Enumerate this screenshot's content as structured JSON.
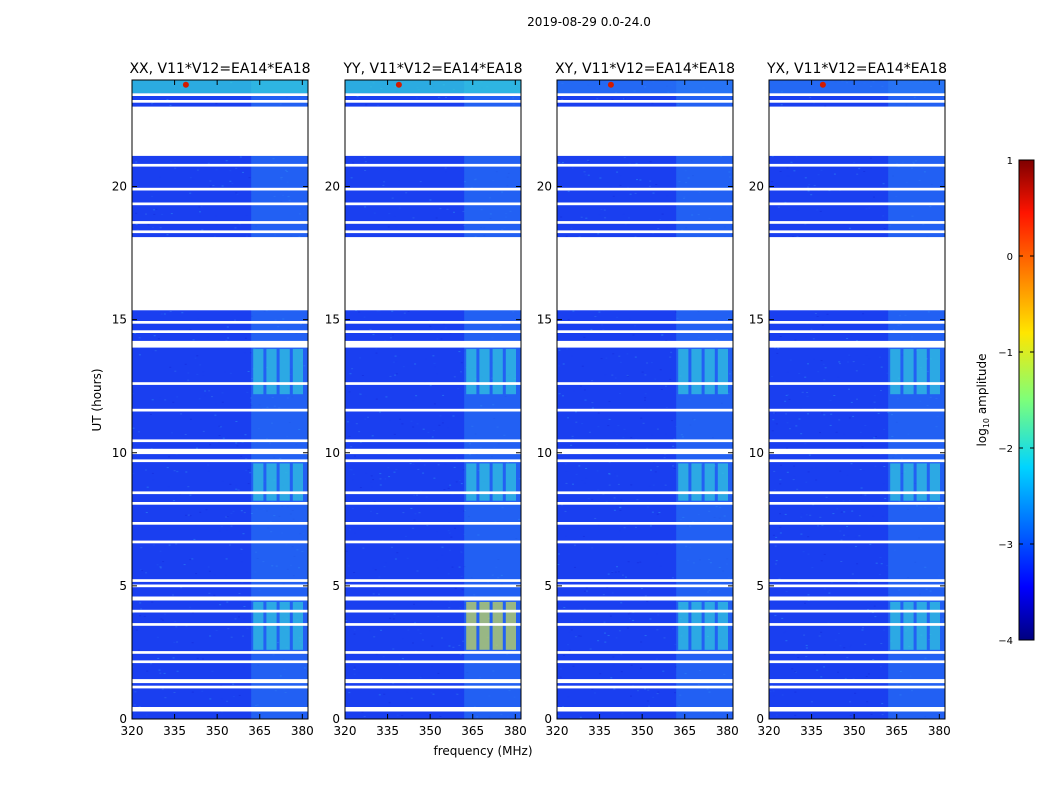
{
  "suptitle": "2019-08-29 0.0-24.0",
  "colors": {
    "bg_low": "#1a3ff0",
    "bg_mid": "#2a7cf5",
    "hot": "#33dada",
    "peak": "#e8f23a",
    "gap": "#ffffff"
  },
  "chart_data": {
    "type": "heatmap",
    "xlabel": "frequency (MHz)",
    "ylabel": "UT (hours)",
    "xlim": [
      320,
      382
    ],
    "ylim": [
      0,
      24
    ],
    "xticks": [
      320,
      335,
      350,
      365,
      380
    ],
    "yticks": [
      0,
      5,
      10,
      15,
      20
    ],
    "panels": [
      {
        "title": "XX, V11*V12=EA14*EA18"
      },
      {
        "title": "YY, V11*V12=EA14*EA18"
      },
      {
        "title": "XY, V11*V12=EA14*EA18"
      },
      {
        "title": "YX, V11*V12=EA14*EA18"
      }
    ],
    "colorbar": {
      "label_main": "log",
      "label_sub": "10",
      "label_rest": " amplitude",
      "vmin": -4,
      "vmax": 1,
      "ticks": [
        -4,
        -3,
        -2,
        -1,
        0,
        1
      ],
      "tick_labels": [
        "−4",
        "−3",
        "−2",
        "−1",
        "0",
        "1"
      ],
      "colormap": "jet"
    },
    "gaps_ut": [
      [
        0.28,
        0.45
      ],
      [
        1.15,
        1.25
      ],
      [
        1.35,
        1.5
      ],
      [
        2.1,
        2.2
      ],
      [
        2.45,
        2.55
      ],
      [
        3.5,
        3.6
      ],
      [
        4.0,
        4.1
      ],
      [
        4.45,
        4.6
      ],
      [
        4.95,
        5.05
      ],
      [
        5.15,
        5.25
      ],
      [
        6.6,
        6.7
      ],
      [
        7.3,
        7.4
      ],
      [
        8.05,
        8.15
      ],
      [
        8.45,
        8.55
      ],
      [
        9.65,
        9.75
      ],
      [
        9.95,
        10.15
      ],
      [
        10.4,
        10.5
      ],
      [
        11.55,
        11.65
      ],
      [
        12.55,
        12.65
      ],
      [
        13.95,
        14.2
      ],
      [
        14.5,
        14.6
      ],
      [
        14.85,
        14.95
      ],
      [
        15.35,
        18.1
      ],
      [
        18.25,
        18.35
      ],
      [
        18.6,
        18.7
      ],
      [
        19.3,
        19.4
      ],
      [
        19.85,
        19.95
      ],
      [
        20.75,
        20.85
      ],
      [
        21.15,
        23.0
      ],
      [
        23.15,
        23.25
      ],
      [
        23.4,
        23.5
      ]
    ],
    "bright_band_mhz": [
      362,
      382
    ],
    "strong_epochs_ut": [
      [
        2.6,
        4.4
      ],
      [
        8.2,
        9.6
      ],
      [
        12.2,
        13.9
      ]
    ],
    "rfi_peak": {
      "freq_mhz": 339,
      "ut": 23.9
    }
  }
}
